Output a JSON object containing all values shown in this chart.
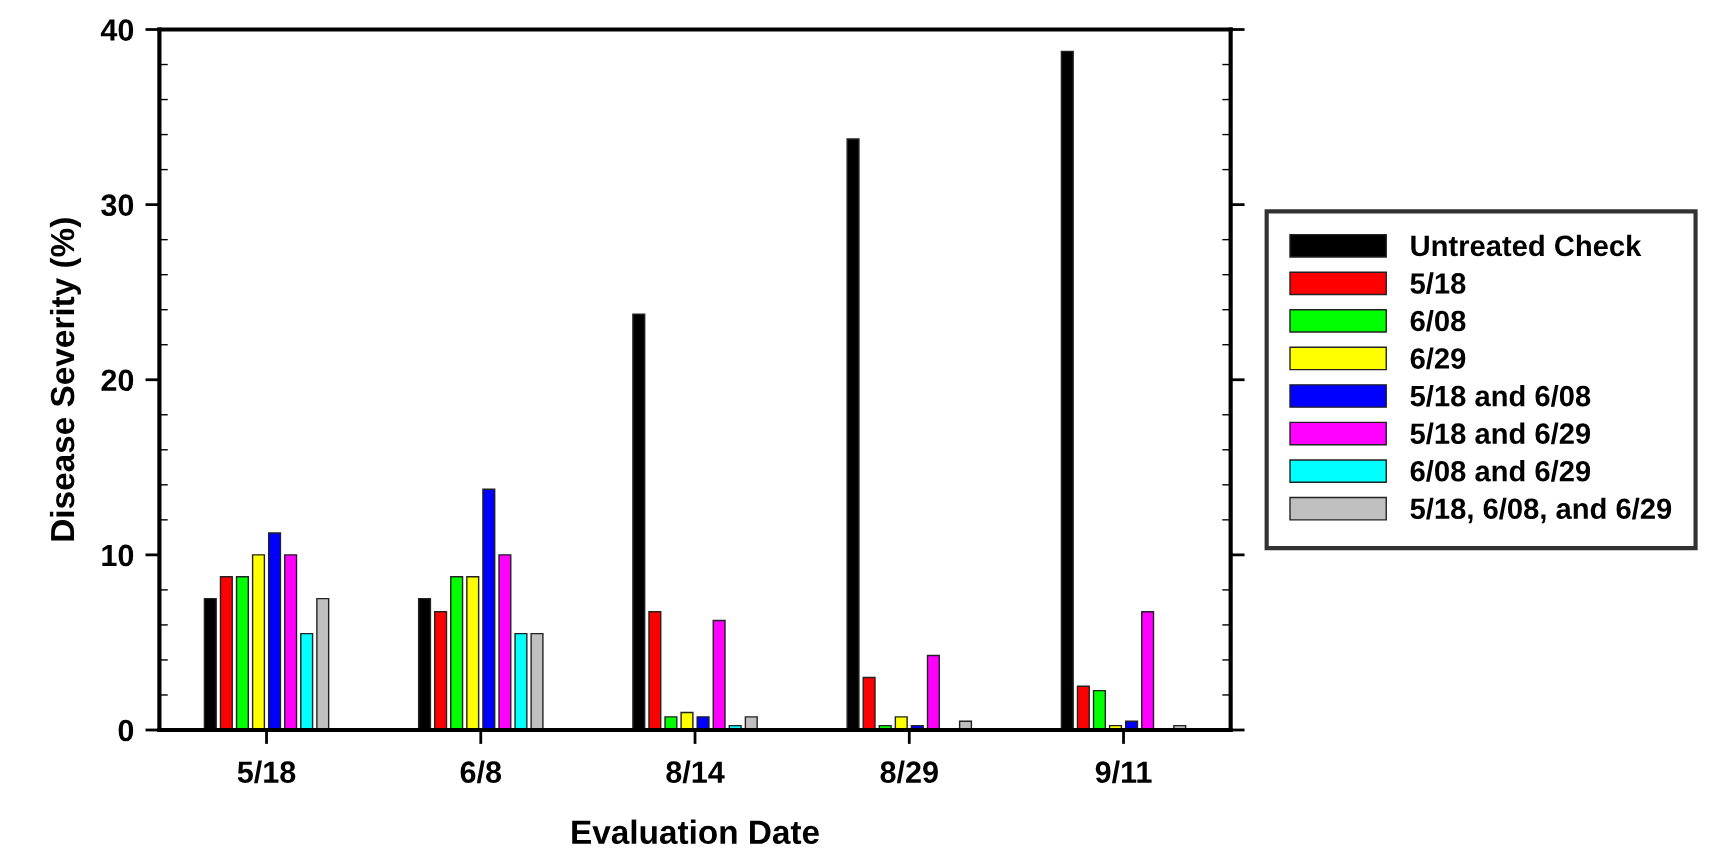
{
  "chart_data": {
    "type": "bar",
    "xlabel": "Evaluation Date",
    "ylabel": "Disease Severity (%)",
    "categories": [
      "5/18",
      "6/8",
      "8/14",
      "8/29",
      "9/11"
    ],
    "series": [
      {
        "name": "Untreated Check",
        "color": "#000000",
        "values": [
          7.5,
          7.5,
          23.75,
          33.75,
          38.75
        ]
      },
      {
        "name": "5/18",
        "color": "#ff0000",
        "values": [
          8.75,
          6.75,
          6.75,
          3.0,
          2.5
        ]
      },
      {
        "name": "6/08",
        "color": "#00ff00",
        "values": [
          8.75,
          8.75,
          0.75,
          0.25,
          2.25
        ]
      },
      {
        "name": "6/29",
        "color": "#ffff00",
        "values": [
          10.0,
          8.75,
          1.0,
          0.75,
          0.25
        ]
      },
      {
        "name": "5/18 and 6/08",
        "color": "#0000ff",
        "values": [
          11.25,
          13.75,
          0.75,
          0.25,
          0.5
        ]
      },
      {
        "name": "5/18 and 6/29",
        "color": "#ff00ff",
        "values": [
          10.0,
          10.0,
          6.25,
          4.25,
          6.75
        ]
      },
      {
        "name": "6/08 and 6/29",
        "color": "#00ffff",
        "values": [
          5.5,
          5.5,
          0.25,
          null,
          null
        ]
      },
      {
        "name": "5/18, 6/08, and 6/29",
        "color": "#c0c0c0",
        "values": [
          7.5,
          5.5,
          0.75,
          0.5,
          0.25
        ]
      }
    ],
    "ylim": [
      0,
      40
    ],
    "yticks": [
      0,
      {
        "value": 2,
        "label": null
      },
      {
        "value": 4,
        "label": null
      },
      {
        "value": 6,
        "label": null
      },
      {
        "value": 8,
        "label": null
      },
      10,
      {
        "value": 12,
        "label": null
      },
      {
        "value": 14,
        "label": null
      },
      {
        "value": 16,
        "label": null
      },
      {
        "value": 18,
        "label": null
      },
      20,
      {
        "value": 22,
        "label": null
      },
      {
        "value": 24,
        "label": null
      },
      {
        "value": 26,
        "label": null
      },
      {
        "value": 28,
        "label": null
      },
      30,
      {
        "value": 32,
        "label": null
      },
      {
        "value": 34,
        "label": null
      },
      {
        "value": 36,
        "label": null
      },
      {
        "value": 38,
        "label": null
      },
      40
    ],
    "grid": false,
    "legend": "right"
  }
}
